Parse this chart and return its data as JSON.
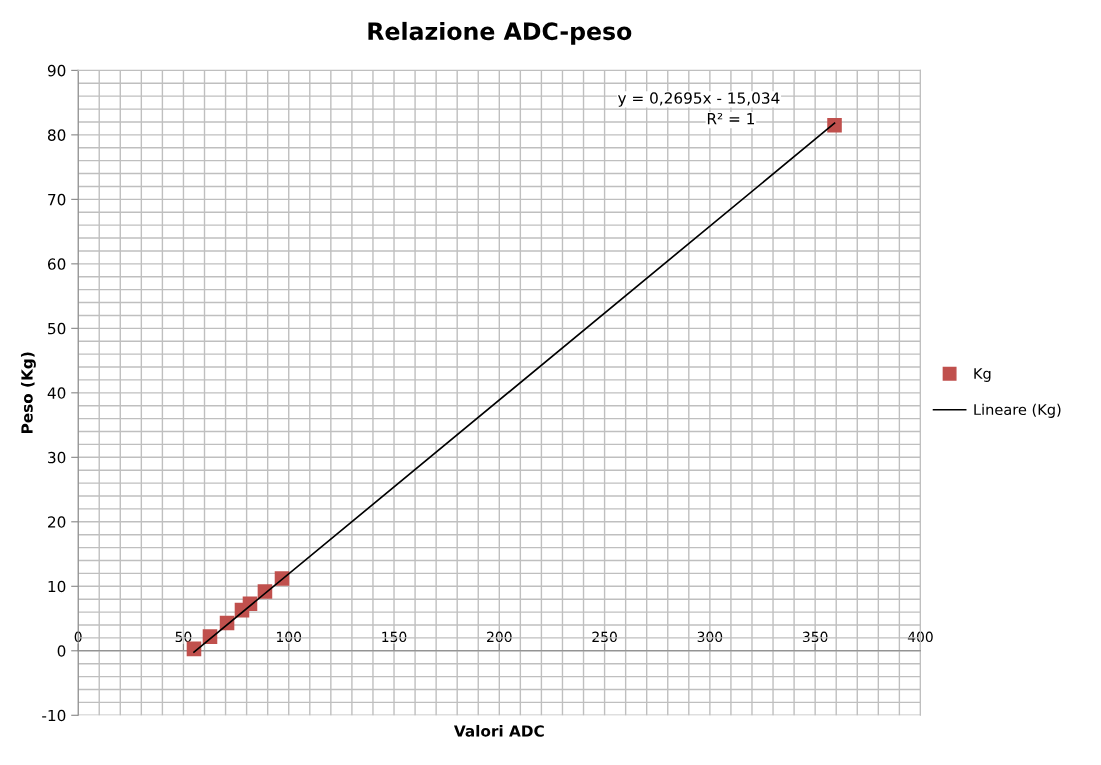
{
  "chart_data": {
    "type": "scatter",
    "title": "Relazione ADC-peso",
    "xlabel": "Valori ADC",
    "ylabel": "Peso (Kg)",
    "x": [
      55.0,
      62.6,
      70.7,
      77.8,
      81.6,
      88.7,
      96.8,
      359.2
    ],
    "series": [
      {
        "name": "Kg",
        "color": "#c0504d",
        "marker": "square",
        "values": [
          0.3,
          2.2,
          4.3,
          6.3,
          7.3,
          9.2,
          11.2,
          81.5
        ]
      },
      {
        "name": "Lineare (Kg)",
        "type": "line",
        "color": "#000000",
        "line_style": "solid",
        "x": [
          55.0,
          359.2
        ],
        "values": [
          -0.2,
          81.8
        ]
      }
    ],
    "annotations": [
      "y = 0,2695x - 15,034",
      "R² = 1"
    ],
    "xlim": [
      0,
      400
    ],
    "xticks": [
      0,
      50,
      100,
      150,
      200,
      250,
      300,
      350,
      400
    ],
    "ylim": [
      -10,
      90
    ],
    "yticks": [
      -10,
      0,
      10,
      20,
      30,
      40,
      50,
      60,
      70,
      80,
      90
    ],
    "grid": true,
    "legend": "right"
  }
}
